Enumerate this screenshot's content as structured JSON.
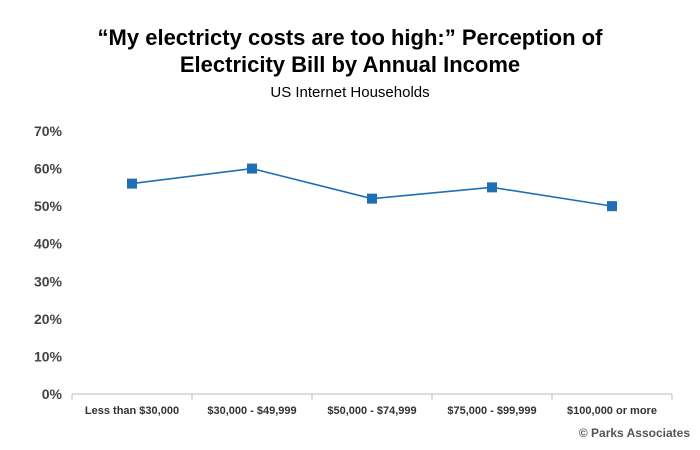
{
  "chart_data": {
    "type": "line",
    "title_lines": [
      "“My electricty costs are too high:” Perception of",
      "Electricity Bill by Annual Income"
    ],
    "subtitle": "US Internet Households",
    "categories": [
      "Less than $30,000",
      "$30,000 - $49,999",
      "$50,000 - $74,999",
      "$75,000 - $99,999",
      "$100,000 or more"
    ],
    "series": [
      {
        "values": [
          56,
          60,
          52,
          55,
          50
        ]
      }
    ],
    "yticks": [
      "0%",
      "10%",
      "20%",
      "30%",
      "40%",
      "50%",
      "60%",
      "70%"
    ],
    "ylim": [
      0,
      70
    ],
    "grid": false,
    "legend": "none",
    "colors": {
      "series": "#1f6fb5",
      "axis": "#bfbfbf"
    }
  },
  "footer": {
    "credit": "© Parks Associates"
  }
}
